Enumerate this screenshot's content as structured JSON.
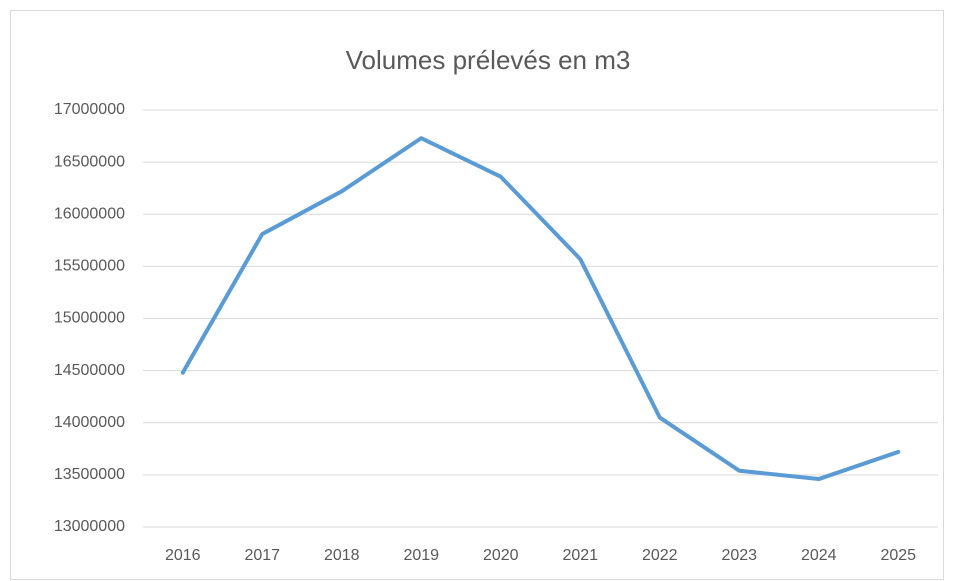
{
  "chart_data": {
    "type": "line",
    "title": "Volumes prélevés en m3",
    "categories": [
      "2016",
      "2017",
      "2018",
      "2019",
      "2020",
      "2021",
      "2022",
      "2023",
      "2024",
      "2025"
    ],
    "series": [
      {
        "color": "#5b9bd5",
        "values": [
          14480000,
          15810000,
          16220000,
          16730000,
          16360000,
          15570000,
          14050000,
          13540000,
          13460000,
          13720000
        ]
      }
    ],
    "ylim": [
      13000000,
      17000000
    ],
    "yticks": [
      13000000,
      13500000,
      14000000,
      14500000,
      15000000,
      15500000,
      16000000,
      16500000,
      17000000
    ],
    "grid": true
  }
}
